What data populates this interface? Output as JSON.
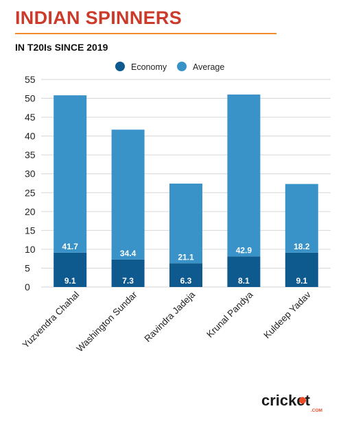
{
  "title": "INDIAN SPINNERS",
  "subtitle": "IN T20Is SINCE 2019",
  "brand": {
    "name": "cricket",
    "suffix": ".COM",
    "name_color": "#1b1b1b",
    "accent_color": "#e94c27"
  },
  "chart_data": {
    "type": "bar",
    "stacked": true,
    "categories": [
      "Yuzvendra Chahal",
      "Washington Sundar",
      "Ravindra Jadeja",
      "Krunal Pandya",
      "Kuldeep Yadav"
    ],
    "series": [
      {
        "name": "Economy",
        "values": [
          9.1,
          7.3,
          6.3,
          8.1,
          9.1
        ],
        "color": "#0e5a8f"
      },
      {
        "name": "Average",
        "values": [
          41.7,
          34.4,
          21.1,
          42.9,
          18.2
        ],
        "color": "#3a93c8"
      }
    ],
    "ylim": [
      0,
      55
    ],
    "yticks": [
      0,
      5,
      10,
      15,
      20,
      25,
      30,
      35,
      40,
      45,
      50,
      55
    ],
    "grid": true,
    "legend_position": "top-center",
    "data_labels": true
  }
}
